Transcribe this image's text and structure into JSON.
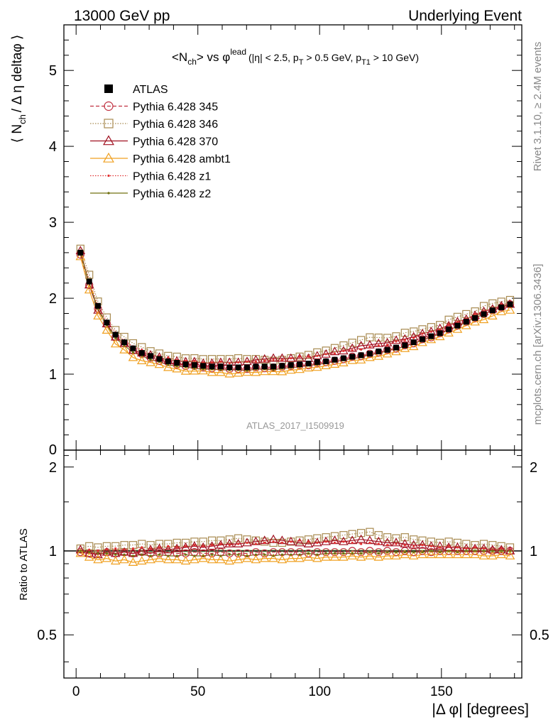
{
  "header": {
    "left": "13000 GeV pp",
    "right": "Underlying Event"
  },
  "side_labels": {
    "rivet": "Rivet 3.1.10, ≥ 2.4M events",
    "mcplots": "mcplots.cern.ch [arXiv:1306.3436]"
  },
  "watermark": "ATLAS_2017_I1509919",
  "chart_data": [
    {
      "type": "scatter",
      "panel": "main",
      "title_parts": {
        "a": "<N",
        "a_sub": "ch",
        "b": "> vs φ",
        "b_sup": "lead",
        "c": "(|η| < 2.5, p",
        "c_sub": "T",
        "d": " > 0.5 GeV, p",
        "d_sub": "T1",
        "e": " > 10 GeV)"
      },
      "ylabel_parts": {
        "a": "⟨ N",
        "a_sub": "ch",
        "b": "/ Δ η deltaφ ⟩"
      },
      "xlim": [
        -5,
        183
      ],
      "ylim": [
        0,
        5.6
      ],
      "yticks": [
        1,
        2,
        3,
        4,
        5
      ],
      "ytick_labels": [
        "1",
        "2",
        "3",
        "4",
        "5"
      ],
      "bottom_tick_label": "0",
      "x": [
        1.8,
        5.4,
        9.0,
        12.6,
        16.2,
        19.8,
        23.4,
        27.0,
        30.6,
        34.2,
        37.8,
        41.4,
        45.0,
        48.6,
        52.2,
        55.8,
        59.4,
        63.0,
        66.6,
        70.2,
        73.8,
        77.4,
        81.0,
        84.6,
        88.2,
        91.8,
        95.4,
        99.0,
        102.6,
        106.2,
        109.8,
        113.4,
        117.0,
        120.6,
        124.2,
        127.8,
        131.4,
        135.0,
        138.6,
        142.2,
        145.8,
        149.4,
        153.0,
        156.6,
        160.2,
        163.8,
        167.4,
        171.0,
        174.6,
        178.2
      ],
      "atlas_reference": [
        2.6,
        2.22,
        1.9,
        1.68,
        1.52,
        1.42,
        1.34,
        1.28,
        1.24,
        1.2,
        1.17,
        1.15,
        1.13,
        1.12,
        1.11,
        1.1,
        1.1,
        1.09,
        1.09,
        1.09,
        1.1,
        1.1,
        1.1,
        1.11,
        1.12,
        1.13,
        1.14,
        1.16,
        1.17,
        1.19,
        1.21,
        1.23,
        1.25,
        1.27,
        1.3,
        1.32,
        1.35,
        1.38,
        1.42,
        1.46,
        1.5,
        1.54,
        1.59,
        1.64,
        1.69,
        1.74,
        1.79,
        1.84,
        1.88,
        1.92
      ],
      "series": [
        {
          "name": "ATLAS",
          "color": "#000000",
          "marker": "filled-square",
          "line": "none"
        },
        {
          "name": "Pythia 6.428 345",
          "color": "#c03040",
          "marker": "open-circle",
          "line": "dashed"
        },
        {
          "name": "Pythia 6.428 346",
          "color": "#a88a50",
          "marker": "open-square",
          "line": "dotted"
        },
        {
          "name": "Pythia 6.428 370",
          "color": "#a01020",
          "marker": "open-triangle",
          "line": "solid"
        },
        {
          "name": "Pythia 6.428 ambt1",
          "color": "#f0a020",
          "marker": "open-triangle",
          "line": "solid"
        },
        {
          "name": "Pythia 6.428 z1",
          "color": "#e03030",
          "marker": "small-dot",
          "line": "dotted"
        },
        {
          "name": "Pythia 6.428 z2",
          "color": "#707010",
          "marker": "small-dot",
          "line": "solid"
        }
      ]
    },
    {
      "type": "scatter",
      "panel": "ratio",
      "ylabel": "Ratio to ATLAS",
      "xlabel": "|Δ φ| [degrees]",
      "ylim": [
        0.35,
        2.3
      ],
      "yticks": [
        0.5,
        1,
        2
      ],
      "ytick_labels": [
        "0.5",
        "1",
        "2"
      ],
      "xticks": [
        0,
        50,
        100,
        150
      ],
      "xtick_labels": [
        "0",
        "50",
        "100",
        "150"
      ],
      "ratios": {
        "Pythia 6.428 345": [
          0.99,
          0.98,
          0.98,
          0.99,
          0.98,
          0.99,
          0.98,
          0.99,
          0.98,
          0.98,
          0.99,
          0.98,
          0.98,
          0.99,
          0.98,
          0.98,
          0.99,
          0.98,
          0.98,
          0.98,
          0.99,
          0.98,
          0.99,
          0.99,
          0.99,
          0.99,
          0.98,
          0.99,
          0.99,
          0.99,
          0.99,
          1.0,
          0.99,
          1.0,
          0.99,
          1.0,
          0.99,
          1.0,
          0.99,
          1.0,
          0.99,
          1.0,
          1.0,
          1.0,
          1.0,
          1.0,
          1.0,
          1.0,
          1.0,
          1.0
        ],
        "Pythia 6.428 346": [
          1.02,
          1.04,
          1.03,
          1.04,
          1.04,
          1.05,
          1.05,
          1.06,
          1.05,
          1.06,
          1.06,
          1.07,
          1.07,
          1.08,
          1.08,
          1.09,
          1.09,
          1.1,
          1.11,
          1.1,
          1.09,
          1.08,
          1.07,
          1.07,
          1.08,
          1.09,
          1.1,
          1.11,
          1.12,
          1.13,
          1.14,
          1.15,
          1.16,
          1.17,
          1.14,
          1.12,
          1.11,
          1.12,
          1.1,
          1.09,
          1.08,
          1.07,
          1.08,
          1.07,
          1.06,
          1.05,
          1.06,
          1.05,
          1.04,
          1.03
        ],
        "Pythia 6.428 370": [
          1.01,
          0.98,
          0.97,
          0.99,
          0.98,
          0.99,
          0.98,
          1.0,
          1.01,
          1.02,
          1.01,
          1.02,
          1.03,
          1.04,
          1.03,
          1.04,
          1.05,
          1.06,
          1.06,
          1.07,
          1.08,
          1.09,
          1.1,
          1.09,
          1.08,
          1.07,
          1.06,
          1.07,
          1.08,
          1.09,
          1.08,
          1.09,
          1.1,
          1.09,
          1.08,
          1.07,
          1.07,
          1.06,
          1.05,
          1.05,
          1.04,
          1.04,
          1.03,
          1.03,
          1.02,
          1.02,
          1.02,
          1.01,
          1.01,
          1.0
        ],
        "Pythia 6.428 ambt1": [
          0.98,
          0.95,
          0.93,
          0.94,
          0.92,
          0.93,
          0.91,
          0.92,
          0.93,
          0.94,
          0.93,
          0.93,
          0.92,
          0.93,
          0.94,
          0.93,
          0.93,
          0.92,
          0.93,
          0.94,
          0.93,
          0.94,
          0.94,
          0.93,
          0.94,
          0.94,
          0.95,
          0.94,
          0.95,
          0.95,
          0.95,
          0.96,
          0.95,
          0.96,
          0.95,
          0.96,
          0.96,
          0.97,
          0.96,
          0.97,
          0.97,
          0.97,
          0.97,
          0.97,
          0.97,
          0.97,
          0.96,
          0.96,
          0.97,
          0.96
        ],
        "Pythia 6.428 z1": [
          1.0,
          1.01,
          1.0,
          1.01,
          1.02,
          1.01,
          1.02,
          1.03,
          1.02,
          1.03,
          1.04,
          1.03,
          1.04,
          1.05,
          1.04,
          1.05,
          1.06,
          1.05,
          1.06,
          1.07,
          1.06,
          1.07,
          1.08,
          1.07,
          1.08,
          1.09,
          1.08,
          1.07,
          1.08,
          1.07,
          1.08,
          1.07,
          1.06,
          1.07,
          1.06,
          1.05,
          1.06,
          1.05,
          1.04,
          1.05,
          1.04,
          1.03,
          1.04,
          1.03,
          1.02,
          1.03,
          1.02,
          1.01,
          1.02,
          1.01
        ],
        "Pythia 6.428 z2": [
          1.0,
          0.99,
          0.98,
          0.98,
          0.97,
          0.97,
          0.96,
          0.97,
          0.96,
          0.97,
          0.96,
          0.96,
          0.97,
          0.96,
          0.96,
          0.97,
          0.96,
          0.97,
          0.97,
          0.96,
          0.97,
          0.97,
          0.96,
          0.97,
          0.97,
          0.97,
          0.98,
          0.97,
          0.98,
          0.98,
          0.98,
          0.98,
          0.98,
          0.99,
          0.98,
          0.99,
          0.99,
          0.99,
          0.99,
          0.99,
          1.0,
          0.99,
          1.0,
          0.99,
          1.0,
          1.0,
          1.0,
          1.0,
          1.0,
          1.0
        ]
      }
    }
  ]
}
